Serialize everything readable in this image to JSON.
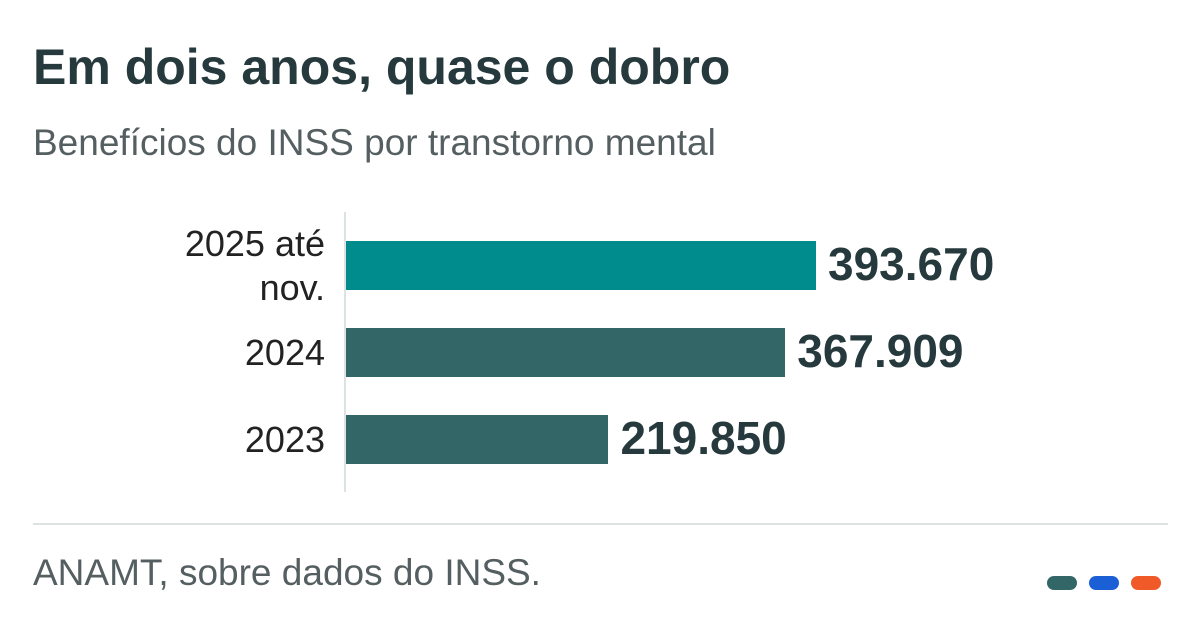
{
  "chart_data": {
    "type": "bar",
    "orientation": "horizontal",
    "title": "Em dois anos, quase o dobro",
    "subtitle": "Benefícios do INSS por transtorno mental",
    "categories": [
      "2025 até nov.",
      "2024",
      "2023"
    ],
    "values": [
      393670,
      367909,
      219850
    ],
    "value_labels": [
      "393.670",
      "367.909",
      "219.850"
    ],
    "colors": [
      "#008b8d",
      "#336666",
      "#336666"
    ],
    "source": "ANAMT, sobre dados do INSS."
  }
}
